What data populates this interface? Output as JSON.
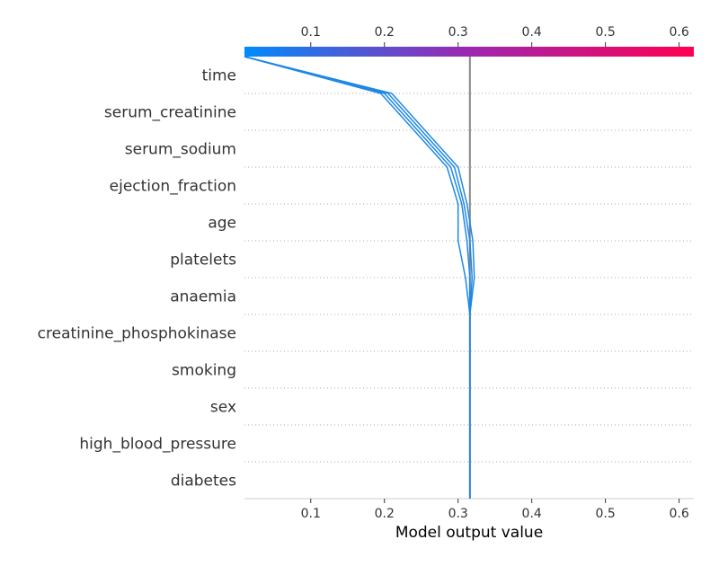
{
  "chart_data": {
    "type": "line",
    "subtype": "shap-decision-plot",
    "title": "",
    "xlabel": "Model output value",
    "ylabel": "",
    "xlim": [
      0.01,
      0.62
    ],
    "x_ticks": [
      0.1,
      0.2,
      0.3,
      0.4,
      0.5,
      0.6
    ],
    "x_tick_labels": [
      "0.1",
      "0.2",
      "0.3",
      "0.4",
      "0.5",
      "0.6"
    ],
    "base_value": 0.316,
    "features": [
      "time",
      "serum_creatinine",
      "serum_sodium",
      "ejection_fraction",
      "age",
      "platelets",
      "anaemia",
      "creatinine_phosphokinase",
      "smoking",
      "sex",
      "high_blood_pressure",
      "diabetes"
    ],
    "series": [
      {
        "values": [
          0.316,
          0.316,
          0.316,
          0.316,
          0.316,
          0.31,
          0.3,
          0.3,
          0.285,
          0.24,
          0.195,
          0.01
        ]
      },
      {
        "values": [
          0.316,
          0.316,
          0.316,
          0.316,
          0.316,
          0.316,
          0.312,
          0.305,
          0.29,
          0.245,
          0.2,
          0.01
        ]
      },
      {
        "values": [
          0.316,
          0.316,
          0.316,
          0.316,
          0.316,
          0.319,
          0.316,
          0.308,
          0.295,
          0.25,
          0.205,
          0.01
        ]
      },
      {
        "values": [
          0.316,
          0.316,
          0.316,
          0.316,
          0.316,
          0.322,
          0.32,
          0.312,
          0.3,
          0.255,
          0.21,
          0.01
        ]
      }
    ],
    "line_color": "#1E88E5",
    "colorbar": {
      "from": "#008bfb",
      "mid": "#9c27b0",
      "to": "#ff0052"
    },
    "grid": "horizontal dotted"
  }
}
